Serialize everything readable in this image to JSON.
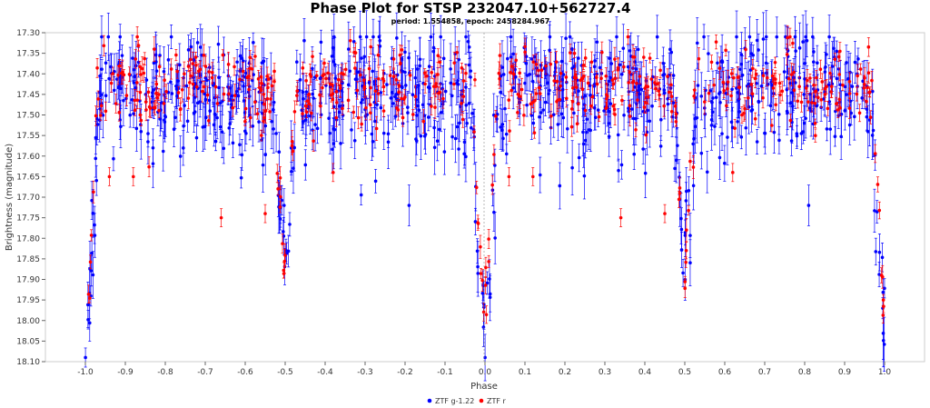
{
  "chart_data": {
    "type": "scatter",
    "title": "Phase Plot for STSP 232047.10+562727.4",
    "subtitle": "period: 1.554858, epoch: 2458284.967",
    "xlabel": "Phase",
    "ylabel": "Brightness (magnitude)",
    "xlim": [
      -1.1,
      1.1
    ],
    "ylim": [
      18.1,
      17.3
    ],
    "y_inverted": true,
    "grid": false,
    "x_ticks": [
      "-1.0",
      "-0.9",
      "-0.8",
      "-0.7",
      "-0.6",
      "-0.5",
      "-0.4",
      "-0.3",
      "-0.2",
      "-0.1",
      "0.0",
      "0.1",
      "0.2",
      "0.3",
      "0.4",
      "0.5",
      "0.6",
      "0.7",
      "0.8",
      "0.9",
      "1.0"
    ],
    "y_ticks": [
      "17.30",
      "17.35",
      "17.40",
      "17.45",
      "17.50",
      "17.55",
      "17.60",
      "17.65",
      "17.70",
      "17.75",
      "17.80",
      "17.85",
      "17.90",
      "17.95",
      "18.00",
      "18.05",
      "18.10"
    ],
    "legend_position": "bottom",
    "series": [
      {
        "name": "ZTF g-1.22",
        "color": "#0000ff",
        "mode": "points-with-errorbars",
        "phase_magnitude_profile": {
          "baseline_mag": 17.45,
          "baseline_scatter": 0.07,
          "typical_error": 0.045,
          "primary_eclipse": {
            "phase": 0.0,
            "depth_mag": 18.05,
            "halfwidth": 0.035
          },
          "secondary_eclipse": {
            "phase": 0.5,
            "depth_mag": 17.85,
            "halfwidth": 0.028
          }
        },
        "notable_points": [
          [
            -0.19,
            17.72
          ],
          [
            0.81,
            17.72
          ]
        ]
      },
      {
        "name": "ZTF r",
        "color": "#ff0000",
        "mode": "points-with-errorbars",
        "phase_magnitude_profile": {
          "baseline_mag": 17.43,
          "baseline_scatter": 0.05,
          "typical_error": 0.02,
          "primary_eclipse": {
            "phase": 0.0,
            "depth_mag": 17.98,
            "halfwidth": 0.03
          },
          "secondary_eclipse": {
            "phase": 0.5,
            "depth_mag": 17.87,
            "halfwidth": 0.025
          }
        },
        "notable_points": [
          [
            -0.94,
            17.65
          ],
          [
            -0.88,
            17.65
          ],
          [
            -0.66,
            17.75
          ],
          [
            -0.55,
            17.74
          ],
          [
            -0.38,
            17.64
          ],
          [
            0.06,
            17.65
          ],
          [
            0.12,
            17.65
          ],
          [
            0.34,
            17.75
          ],
          [
            0.45,
            17.74
          ],
          [
            0.62,
            17.64
          ]
        ]
      }
    ]
  }
}
